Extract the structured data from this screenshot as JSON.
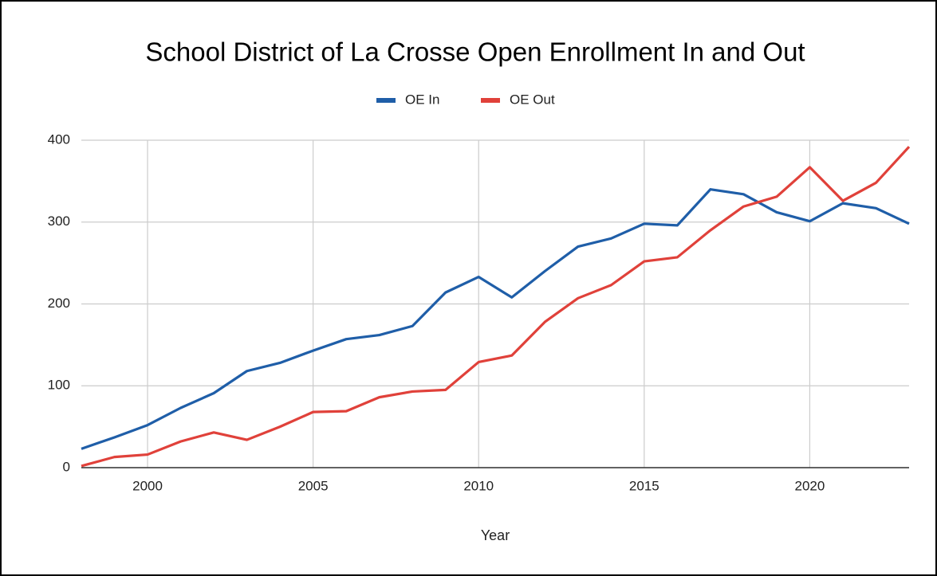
{
  "chart_data": {
    "type": "line",
    "title": "School District of La Crosse Open Enrollment In and Out",
    "x_label": "Year",
    "x": [
      1998,
      1999,
      2000,
      2001,
      2002,
      2003,
      2004,
      2005,
      2006,
      2007,
      2008,
      2009,
      2010,
      2011,
      2012,
      2013,
      2014,
      2015,
      2016,
      2017,
      2018,
      2019,
      2020,
      2021,
      2022,
      2023
    ],
    "series": [
      {
        "name": "OE In",
        "color": "#1f5ea8",
        "values": [
          23,
          37,
          52,
          73,
          91,
          118,
          128,
          143,
          157,
          162,
          173,
          214,
          233,
          208,
          240,
          270,
          280,
          298,
          296,
          340,
          334,
          312,
          301,
          323,
          317,
          298
        ]
      },
      {
        "name": "OE Out",
        "color": "#e0413a",
        "values": [
          2,
          13,
          16,
          32,
          43,
          34,
          50,
          68,
          69,
          86,
          93,
          95,
          129,
          137,
          178,
          207,
          223,
          252,
          257,
          290,
          319,
          331,
          367,
          326,
          348,
          392
        ]
      }
    ],
    "xlim": [
      1998,
      2023
    ],
    "xticks": [
      2000,
      2005,
      2010,
      2015,
      2020
    ],
    "ylim": [
      0,
      400
    ],
    "yticks": [
      0,
      100,
      200,
      300,
      400
    ],
    "grid": true,
    "legend": "top"
  }
}
